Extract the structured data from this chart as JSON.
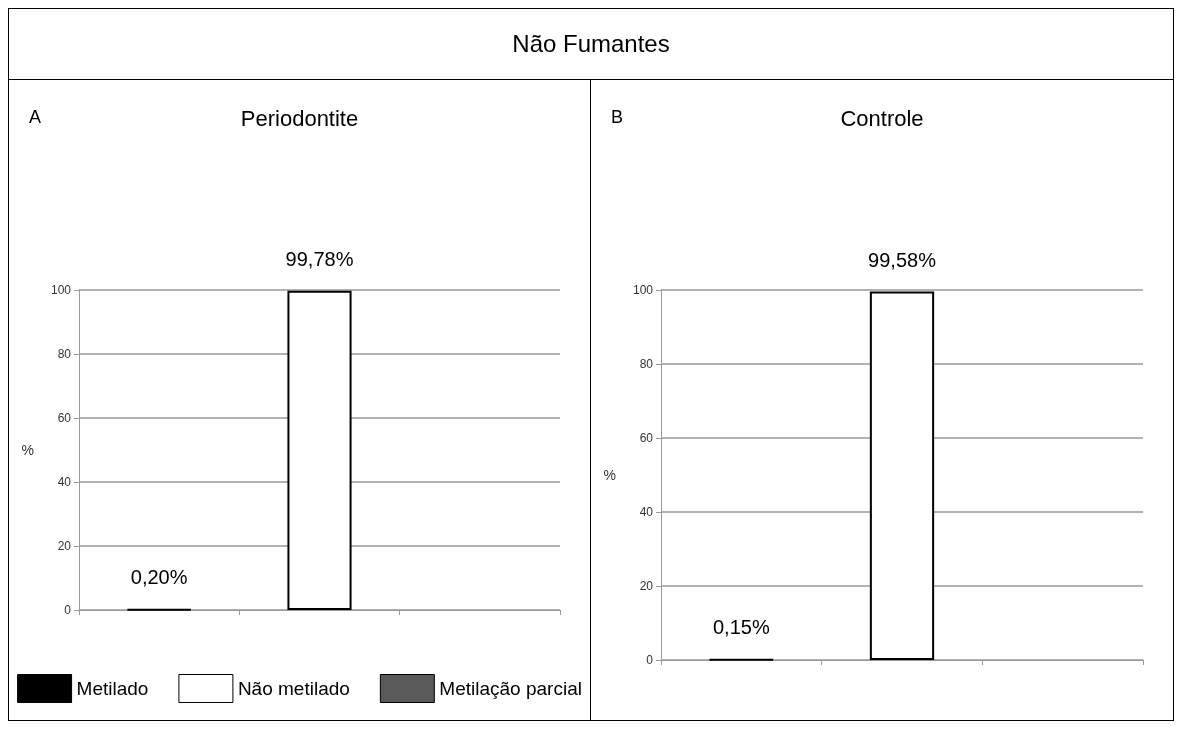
{
  "chart_data": [
    {
      "type": "bar",
      "title": "Periodontite",
      "annotations": [
        "Não Fumantes",
        "A"
      ],
      "ylabel": "%",
      "categories": [
        null,
        null,
        null
      ],
      "ylim": [
        0,
        100
      ],
      "yticks": [
        0,
        20,
        40,
        60,
        80,
        100
      ],
      "grid": "y",
      "legend": "bottom",
      "series": [
        {
          "name": "Metilado",
          "color": "#000000",
          "values": [
            0.2,
            null,
            null
          ],
          "value_labels": [
            "0,20%",
            null,
            null
          ]
        },
        {
          "name": "Não metilado",
          "color": "#ffffff",
          "values": [
            null,
            99.78,
            null
          ],
          "value_labels": [
            null,
            "99,78%",
            null
          ]
        },
        {
          "name": "Metilação parcial",
          "color": "#595959",
          "values": [
            null,
            null,
            null
          ]
        }
      ]
    },
    {
      "type": "bar",
      "title": "Controle",
      "annotations": [
        "B"
      ],
      "ylabel": "%",
      "categories": [
        null,
        null,
        null
      ],
      "ylim": [
        0,
        100
      ],
      "yticks": [
        0,
        20,
        40,
        60,
        80,
        100
      ],
      "grid": "y",
      "series": [
        {
          "color": "#000000",
          "values": [
            0.15,
            null,
            null
          ],
          "value_labels": [
            "0,15%",
            null,
            null
          ]
        },
        {
          "color": "#ffffff",
          "values": [
            null,
            99.58,
            null
          ],
          "value_labels": [
            null,
            "99,58%",
            null
          ]
        }
      ]
    }
  ]
}
